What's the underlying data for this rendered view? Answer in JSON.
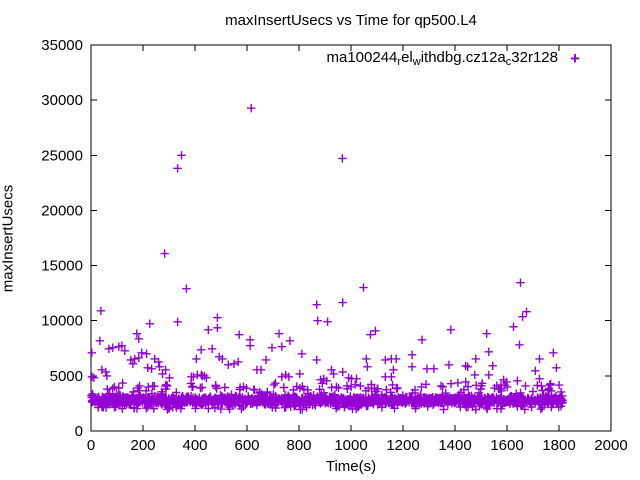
{
  "figure": {
    "background": "#ffffff",
    "text_color": "#000000",
    "border_color": "#000000"
  },
  "chart_data": {
    "type": "scatter",
    "title": "maxInsertUsecs vs Time for qp500.L4",
    "xlabel": "Time(s)",
    "ylabel": "maxInsertUsecs",
    "xlim": [
      0,
      2000
    ],
    "ylim": [
      0,
      35000
    ],
    "x_ticks": [
      0,
      200,
      400,
      600,
      800,
      1000,
      1200,
      1400,
      1600,
      1800,
      2000
    ],
    "y_ticks": [
      0,
      5000,
      10000,
      15000,
      20000,
      25000,
      30000,
      35000
    ],
    "grid": false,
    "tick_style": "inward-mirrored",
    "legend_position": "top-right-inside",
    "series": [
      {
        "name": "ma100244_rel_withdbg.cz12a_c32r128",
        "name_segments": [
          {
            "t": "ma100244"
          },
          {
            "t": "r",
            "sub": true
          },
          {
            "t": "el"
          },
          {
            "t": "w",
            "sub": true
          },
          {
            "t": "ithdbg.cz12a"
          },
          {
            "t": "c",
            "sub": true
          },
          {
            "t": "32r128"
          }
        ],
        "marker": "plus",
        "marker_glyph": "+",
        "color": "#9400d3",
        "points": [
          [
            616,
            29270
          ],
          [
            348,
            25000
          ],
          [
            333,
            23820
          ],
          [
            967,
            24720
          ],
          [
            283,
            16090
          ],
          [
            367,
            12900
          ],
          [
            1048,
            13000
          ],
          [
            1652,
            13450
          ],
          [
            38,
            10900
          ],
          [
            226,
            9730
          ],
          [
            333,
            9900
          ],
          [
            451,
            9180
          ],
          [
            486,
            10270
          ],
          [
            486,
            9360
          ],
          [
            34,
            8180
          ],
          [
            176,
            8820
          ],
          [
            184,
            8360
          ],
          [
            84,
            7550
          ],
          [
            107,
            7640
          ],
          [
            130,
            7270
          ],
          [
            119,
            7730
          ],
          [
            69,
            7450
          ],
          [
            3,
            7090
          ],
          [
            153,
            6450
          ],
          [
            168,
            6540
          ],
          [
            161,
            6090
          ],
          [
            184,
            6630
          ],
          [
            195,
            7090
          ],
          [
            214,
            7000
          ],
          [
            245,
            6540
          ],
          [
            260,
            6270
          ],
          [
            264,
            5820
          ],
          [
            218,
            5730
          ],
          [
            233,
            5640
          ],
          [
            275,
            5180
          ],
          [
            287,
            5550
          ],
          [
            302,
            4820
          ],
          [
            386,
            4910
          ],
          [
            394,
            4910
          ],
          [
            409,
            5090
          ],
          [
            424,
            5090
          ],
          [
            428,
            5000
          ],
          [
            436,
            5000
          ],
          [
            444,
            4820
          ],
          [
            405,
            6540
          ],
          [
            424,
            7360
          ],
          [
            466,
            7450
          ],
          [
            493,
            6730
          ],
          [
            505,
            6540
          ],
          [
            528,
            6000
          ],
          [
            550,
            6090
          ],
          [
            566,
            6270
          ],
          [
            570,
            8730
          ],
          [
            612,
            8270
          ],
          [
            612,
            7730
          ],
          [
            638,
            5550
          ],
          [
            654,
            5550
          ],
          [
            673,
            6450
          ],
          [
            42,
            5550
          ],
          [
            57,
            5360
          ],
          [
            61,
            5000
          ],
          [
            4,
            4910
          ],
          [
            11,
            4820
          ],
          [
            180,
            3910
          ],
          [
            187,
            4090
          ],
          [
            294,
            4090
          ],
          [
            868,
            11450
          ],
          [
            968,
            11640
          ],
          [
            872,
            10000
          ],
          [
            910,
            9910
          ],
          [
            1075,
            8730
          ],
          [
            1094,
            9090
          ],
          [
            723,
            8820
          ],
          [
            765,
            8180
          ],
          [
            696,
            7550
          ],
          [
            734,
            7640
          ],
          [
            811,
            7000
          ],
          [
            868,
            6450
          ],
          [
            1273,
            8270
          ],
          [
            1235,
            6910
          ],
          [
            1235,
            5820
          ],
          [
            1292,
            5640
          ],
          [
            1319,
            5640
          ],
          [
            1132,
            6450
          ],
          [
            1155,
            6540
          ],
          [
            1174,
            6540
          ],
          [
            1059,
            6540
          ],
          [
            1063,
            5820
          ],
          [
            1132,
            4910
          ],
          [
            1155,
            4910
          ],
          [
            1163,
            5550
          ],
          [
            734,
            4910
          ],
          [
            749,
            5090
          ],
          [
            761,
            4910
          ],
          [
            803,
            5180
          ],
          [
            704,
            4180
          ],
          [
            883,
            4640
          ],
          [
            895,
            4730
          ],
          [
            906,
            4550
          ],
          [
            925,
            5550
          ],
          [
            933,
            5180
          ],
          [
            968,
            5360
          ],
          [
            991,
            4820
          ],
          [
            1002,
            4730
          ],
          [
            1021,
            4730
          ],
          [
            1036,
            4090
          ],
          [
            1101,
            3820
          ],
          [
            944,
            4000
          ],
          [
            952,
            3910
          ],
          [
            834,
            3730
          ],
          [
            1246,
            3730
          ],
          [
            1246,
            3450
          ],
          [
            1346,
            4090
          ],
          [
            1353,
            4000
          ],
          [
            1675,
            10820
          ],
          [
            1660,
            10360
          ],
          [
            1625,
            9450
          ],
          [
            1384,
            9180
          ],
          [
            1522,
            8820
          ],
          [
            1648,
            7820
          ],
          [
            1530,
            7180
          ],
          [
            1778,
            7090
          ],
          [
            1480,
            6540
          ],
          [
            1545,
            5910
          ],
          [
            1377,
            6000
          ],
          [
            1441,
            5910
          ],
          [
            1449,
            5820
          ],
          [
            1725,
            6540
          ],
          [
            1790,
            5730
          ],
          [
            1476,
            5090
          ],
          [
            1530,
            5090
          ],
          [
            1709,
            5460
          ],
          [
            1725,
            4730
          ],
          [
            1411,
            4360
          ],
          [
            1441,
            4450
          ],
          [
            1587,
            4640
          ],
          [
            1598,
            4450
          ],
          [
            1671,
            4090
          ],
          [
            1759,
            3730
          ],
          [
            1770,
            3640
          ],
          [
            1568,
            3820
          ],
          [
            1579,
            3640
          ],
          [
            1640,
            4550
          ]
        ],
        "dense_band": {
          "description": "dense baseline stripe of per-second samples",
          "seed": 1337,
          "count": 1750,
          "x_min": 1,
          "x_max": 1815,
          "core_mean": 2780,
          "core_sigma": 200,
          "core_min": 2080,
          "core_max": 3380,
          "upper_tail_frac": 0.055,
          "upper_tail_min": 3350,
          "upper_tail_max": 4350,
          "lower_tail_frac": 0.03,
          "lower_tail_min": 1950,
          "lower_tail_max": 2250
        }
      }
    ]
  }
}
